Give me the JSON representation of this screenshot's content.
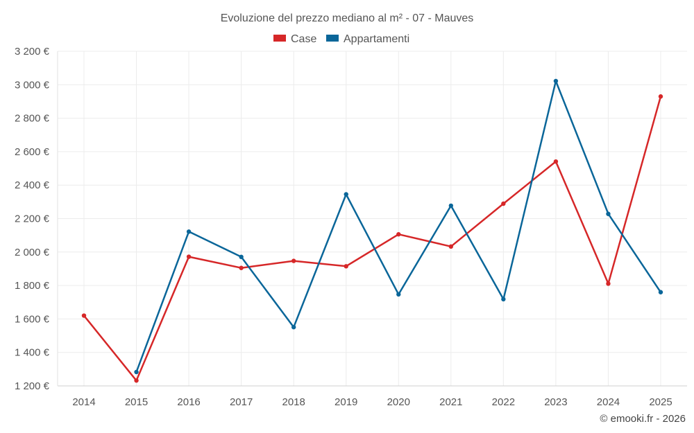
{
  "chart_data": {
    "type": "line",
    "title": "Evoluzione del prezzo mediano al m² - 07 - Mauves",
    "xlabel": "",
    "ylabel": "",
    "categories": [
      "2014",
      "2015",
      "2016",
      "2017",
      "2018",
      "2019",
      "2020",
      "2021",
      "2022",
      "2023",
      "2024",
      "2025"
    ],
    "ylim": [
      1200,
      3200
    ],
    "yticks": [
      1200,
      1400,
      1600,
      1800,
      2000,
      2200,
      2400,
      2600,
      2800,
      3000,
      3200
    ],
    "ytick_labels": [
      "1 200 €",
      "1 400 €",
      "1 600 €",
      "1 800 €",
      "2 000 €",
      "2 200 €",
      "2 400 €",
      "2 600 €",
      "2 800 €",
      "3 000 €",
      "3 200 €"
    ],
    "legend_position": "top-center",
    "grid": true,
    "series": [
      {
        "name": "Case",
        "color": "#d62728",
        "values": [
          1620,
          1232,
          1972,
          1905,
          1947,
          1915,
          2106,
          2033,
          2289,
          2541,
          1811,
          2930
        ]
      },
      {
        "name": "Appartamenti",
        "color": "#0a6699",
        "values": [
          null,
          1283,
          2122,
          1971,
          1551,
          2345,
          1747,
          2277,
          1718,
          3022,
          2228,
          1760
        ]
      }
    ]
  },
  "credit": "© emooki.fr - 2026"
}
